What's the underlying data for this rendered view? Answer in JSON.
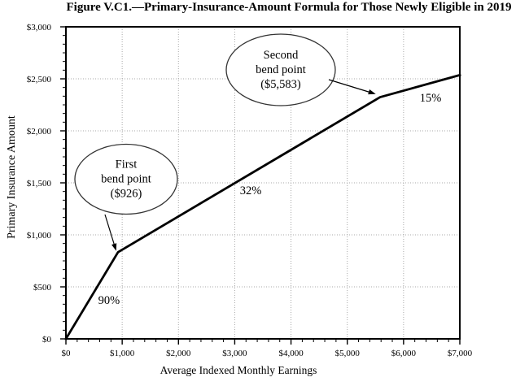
{
  "title": "Figure V.C1.—Primary-Insurance-Amount Formula for Those Newly Eligible in 2019",
  "chart_data": {
    "type": "line",
    "title": "Figure V.C1.—Primary-Insurance-Amount Formula for Those Newly Eligible in 2019",
    "xlabel": "Average Indexed Monthly Earnings",
    "ylabel": "Primary Insurance Amount",
    "xlim": [
      0,
      7000
    ],
    "ylim": [
      0,
      3000
    ],
    "x_major_interval": 1000,
    "x_minor_per_major": 5,
    "y_major_interval": 500,
    "y_minor_per_major": 6,
    "x_tick_labels": [
      "$0",
      "$1,000",
      "$2,000",
      "$3,000",
      "$4,000",
      "$5,000",
      "$6,000",
      "$7,000"
    ],
    "y_tick_labels": [
      "$0",
      "$500",
      "$1,000",
      "$1,500",
      "$2,000",
      "$2,500",
      "$3,000"
    ],
    "grid": {
      "style": "dotted",
      "color": "#a9a9a9",
      "vertical_at": "x-majors",
      "horizontal_at": "y-majors"
    },
    "line_color": "#000000",
    "series": [
      {
        "name": "PIA formula",
        "points": [
          {
            "x": 0,
            "y": 0
          },
          {
            "x": 926,
            "y": 833.4
          },
          {
            "x": 5583,
            "y": 2323.64
          },
          {
            "x": 7000,
            "y": 2536.19
          }
        ]
      }
    ],
    "segment_labels": [
      {
        "text": "90%",
        "x": 766,
        "y": 375
      },
      {
        "text": "32%",
        "x": 3283,
        "y": 1430
      },
      {
        "text": "15%",
        "x": 6480,
        "y": 2320
      }
    ],
    "annotations": [
      {
        "lines": [
          "First",
          "bend point",
          "($926)"
        ],
        "label_center": {
          "x": 1070,
          "y": 1535
        },
        "target": {
          "x": 926,
          "y": 833.4
        }
      },
      {
        "lines": [
          "Second",
          "bend point",
          "($5,583)"
        ],
        "label_center": {
          "x": 3818,
          "y": 2586
        },
        "target": {
          "x": 5583,
          "y": 2323.64
        }
      }
    ]
  }
}
